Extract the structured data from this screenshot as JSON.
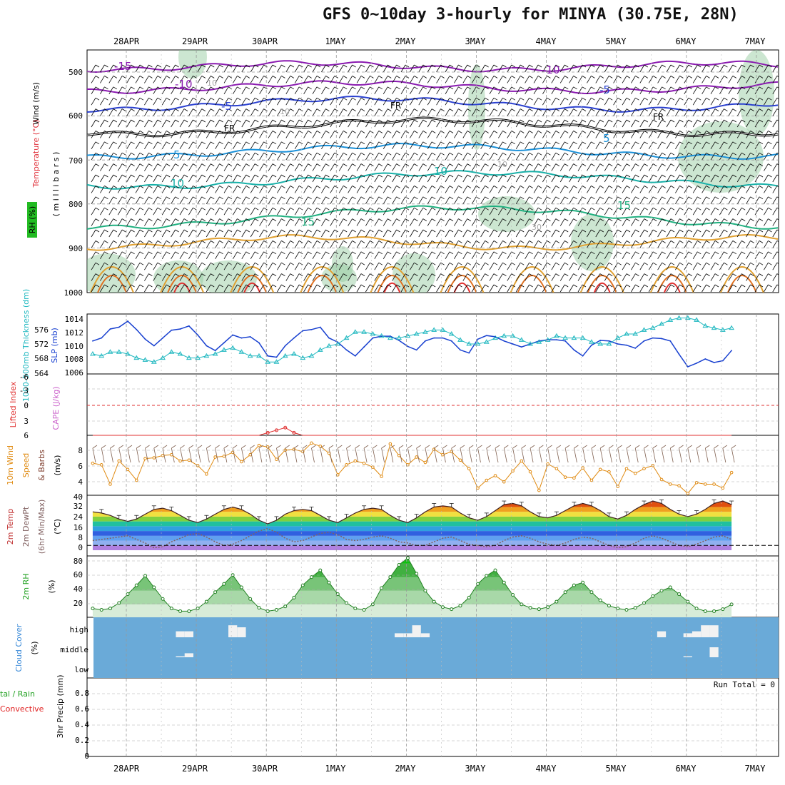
{
  "title": "GFS 0~10day 3-hourly for MINYA (30.75E, 28N)",
  "dates_top": [
    "28APR",
    "29APR",
    "30APR",
    "1MAY",
    "2MAY",
    "3MAY",
    "4MAY",
    "5MAY",
    "6MAY",
    "7MAY"
  ],
  "dates_bottom": [
    "28APR",
    "29APR",
    "30APR",
    "1MAY",
    "2MAY",
    "3MAY",
    "4MAY",
    "5MAY",
    "6MAY",
    "7MAY"
  ],
  "colors": {
    "wind_label": "#000000",
    "temp_label": "#e0303a",
    "rh_label": "#22aa22",
    "thk": "#20b8c0",
    "slp": "#1840d0",
    "cape": "#cc66cc",
    "li": "#e03030",
    "wind10": "#e08a10",
    "dewpt": "#806060",
    "rh2m": "#20a020",
    "cloud_bg": "#6aaad8",
    "cloud_lbl": "#3a8ad8",
    "precip_total": "#20a020",
    "precip_conv": "#e02020"
  },
  "panel1": {
    "label_wind": "Wind (m/s)",
    "label_temp": "Temperature (°C)",
    "label_rh": "RH (%)",
    "label_mb": "( m i l l i b a r s )",
    "pressure_ticks": [
      "500",
      "600",
      "700",
      "800",
      "900",
      "1000"
    ],
    "contour_labels": [
      "-15",
      "-10",
      "-10",
      "-5",
      "-5",
      "FR",
      "FR",
      "FR",
      "5",
      "5",
      "10",
      "10",
      "15",
      "15",
      "10",
      "10",
      "30",
      "10"
    ]
  },
  "panel2": {
    "label_thk": "1000-500mb Thickness (dm)",
    "label_slp": "SLP (mb)",
    "thk_ticks": [
      "576",
      "572",
      "568",
      "564"
    ],
    "slp_ticks": [
      "1014",
      "1012",
      "1010",
      "1008",
      "1006"
    ]
  },
  "panel3": {
    "label_li": "Lifted Index",
    "label_cape": "CAPE (J/kg)",
    "li_ticks": [
      "-6",
      "-3",
      "0",
      "3",
      "6"
    ]
  },
  "panel4": {
    "label_a": "10m Wind",
    "label_b": "Speed",
    "label_c": "& Barbs",
    "label_unit": "(m/s)",
    "ticks": [
      "8",
      "6",
      "4"
    ]
  },
  "panel5": {
    "label_a": "2m Temp",
    "label_b": "2m DewPt",
    "label_c": "(6hr Min/Max)",
    "label_unit": "(°C)",
    "ticks": [
      "40",
      "32",
      "24",
      "16",
      "8",
      "0"
    ]
  },
  "panel6": {
    "label_a": "2m RH",
    "label_unit": "(%)",
    "ticks": [
      "80",
      "60",
      "40",
      "20"
    ]
  },
  "panel7": {
    "label_a": "Cloud Cover",
    "label_unit": "(%)",
    "levels": [
      "high",
      "middle",
      "low"
    ]
  },
  "panel8": {
    "label_total": "tal / Rain",
    "label_conv": "Convective",
    "label_precip": "3hr Precip (mm)",
    "run_total": "Run Total = 0",
    "ticks": [
      "0.8",
      "0.6",
      "0.4",
      "0.2",
      "0"
    ]
  },
  "chart_data": [
    {
      "type": "line",
      "title": "SLP (mb) and 1000-500mb Thickness (dm)",
      "x_unit": "3-hourly steps from 27APR 12Z",
      "series": [
        {
          "name": "SLP (mb)",
          "values": [
            1010.5,
            1011.0,
            1012.5,
            1012.8,
            1013.8,
            1012.4,
            1010.8,
            1009.7,
            1011.0,
            1012.3,
            1012.5,
            1013.0,
            1011.5,
            1009.7,
            1008.9,
            1010.2,
            1011.5,
            1011.0,
            1011.2,
            1010.2,
            1008.0,
            1007.8,
            1009.7,
            1011.0,
            1012.2,
            1012.4,
            1012.8,
            1011.0,
            1010.3,
            1009.0,
            1008.0,
            1009.5,
            1011.0,
            1011.3,
            1011.3,
            1010.6,
            1009.6,
            1009.0,
            1010.5,
            1011.0,
            1011.0,
            1010.5,
            1009.0,
            1008.5,
            1010.8,
            1011.4,
            1011.2,
            1010.5,
            1010.0,
            1009.5,
            1010.0,
            1010.5,
            1010.7,
            1010.7,
            1010.5,
            1009.0,
            1008.0,
            1009.8,
            1010.6,
            1010.5,
            1010.0,
            1009.8,
            1009.3,
            1010.5,
            1011.0,
            1010.9,
            1010.5,
            1008.3,
            1006.2,
            1006.8,
            1007.5,
            1006.9,
            1007.2,
            1008.9
          ]
        },
        {
          "name": "Thickness (dm)",
          "values": [
            568.0,
            567.5,
            568.5,
            568.5,
            568.0,
            567.0,
            566.5,
            566.0,
            567.0,
            568.5,
            568.0,
            567.0,
            567.0,
            567.5,
            568.0,
            569.0,
            569.5,
            568.5,
            567.5,
            567.5,
            566.0,
            566.0,
            567.5,
            568.0,
            567.0,
            567.5,
            569.0,
            570.0,
            570.5,
            572.0,
            573.5,
            573.5,
            573.0,
            572.5,
            572.0,
            572.0,
            572.5,
            573.0,
            573.5,
            574.0,
            574.0,
            573.0,
            571.5,
            570.5,
            570.5,
            571.0,
            572.0,
            572.5,
            572.5,
            571.5,
            570.5,
            571.0,
            571.5,
            572.5,
            572.0,
            572.0,
            572.0,
            571.0,
            570.5,
            570.5,
            572.0,
            573.0,
            573.0,
            574.0,
            574.5,
            575.5,
            576.5,
            577.0,
            577.0,
            576.5,
            575.0,
            574.5,
            574.0,
            574.5
          ]
        }
      ],
      "ylim_slp": [
        1006,
        1014
      ],
      "ylim_thk": [
        564,
        578
      ]
    },
    {
      "type": "line",
      "title": "Lifted Index / CAPE",
      "series": [
        {
          "name": "Lifted Index",
          "values": [
            6,
            6,
            6,
            6,
            6,
            6,
            6,
            6,
            6,
            6,
            6,
            6,
            6,
            6,
            6,
            6,
            6,
            6,
            6,
            6,
            5.5,
            5.0,
            4.5,
            5.5,
            6,
            6,
            6,
            6,
            6,
            6,
            6,
            6,
            6,
            6,
            6,
            6,
            6,
            6,
            6,
            6,
            6,
            6,
            6,
            6,
            6,
            6,
            6,
            6,
            6,
            6,
            6,
            6,
            6,
            6,
            6,
            6,
            6,
            6,
            6,
            6,
            6,
            6,
            6,
            6,
            6,
            6,
            6,
            6,
            6,
            6,
            6,
            6,
            6,
            6
          ]
        }
      ],
      "ylim": [
        -6,
        6
      ]
    },
    {
      "type": "line",
      "title": "10m Wind Speed (m/s)",
      "series": [
        {
          "name": "10m Wind Speed",
          "values": [
            6.5,
            6.3,
            3.8,
            6.8,
            5.7,
            4.3,
            7.1,
            7.2,
            7.5,
            7.6,
            6.8,
            6.9,
            6.2,
            5.1,
            7.3,
            7.4,
            7.9,
            6.7,
            7.6,
            8.8,
            8.6,
            7.0,
            8.2,
            8.3,
            8.0,
            9.1,
            8.7,
            7.8,
            5.0,
            6.3,
            6.8,
            6.5,
            6.0,
            4.8,
            9.0,
            7.5,
            6.3,
            7.3,
            6.6,
            8.3,
            7.6,
            8.0,
            6.9,
            5.8,
            3.3,
            4.3,
            4.9,
            4.1,
            5.5,
            6.8,
            5.4,
            3.0,
            6.4,
            5.8,
            4.7,
            4.6,
            5.9,
            4.3,
            5.7,
            5.4,
            3.5,
            5.8,
            5.2,
            5.8,
            6.2,
            4.4,
            3.8,
            3.6,
            2.6,
            4.0,
            3.8,
            3.8,
            3.3,
            5.3
          ]
        }
      ],
      "ylim": [
        2,
        9
      ]
    },
    {
      "type": "area",
      "title": "2m Temp / 2m DewPt",
      "series": [
        {
          "name": "2m Temp (°C)",
          "values": [
            28,
            27,
            25,
            22,
            20,
            22,
            26,
            30,
            31,
            29,
            25,
            21,
            19,
            22,
            26,
            30,
            32,
            30,
            26,
            21,
            18,
            21,
            26,
            29,
            30,
            29,
            25,
            21,
            19,
            23,
            27,
            30,
            31,
            30,
            25,
            21,
            19,
            23,
            28,
            32,
            33,
            32,
            27,
            23,
            21,
            24,
            29,
            34,
            35,
            33,
            28,
            24,
            23,
            25,
            29,
            33,
            35,
            33,
            29,
            24,
            22,
            25,
            30,
            34,
            37,
            35,
            30,
            26,
            24,
            26,
            30,
            35,
            37,
            34
          ]
        },
        {
          "name": "2m DewPt (°C)",
          "values": [
            4,
            5,
            6,
            7,
            8,
            5,
            2,
            -2,
            -1,
            3,
            6,
            9,
            10,
            7,
            3,
            0,
            1,
            4,
            8,
            12,
            14,
            11,
            6,
            3,
            4,
            7,
            10,
            11,
            9,
            5,
            4,
            5,
            7,
            8,
            6,
            3,
            2,
            0,
            0,
            3,
            6,
            7,
            4,
            1,
            0,
            -1,
            0,
            4,
            7,
            8,
            6,
            3,
            1,
            0,
            2,
            5,
            7,
            6,
            3,
            0,
            -2,
            -1,
            2,
            6,
            8,
            6,
            3,
            0,
            -1,
            1,
            4,
            7,
            8,
            5
          ]
        }
      ],
      "ylim": [
        -4,
        40
      ]
    },
    {
      "type": "area",
      "title": "2m RH (%)",
      "series": [
        {
          "name": "2m RH",
          "values": [
            14,
            12,
            14,
            22,
            35,
            48,
            62,
            45,
            28,
            14,
            10,
            10,
            14,
            24,
            38,
            50,
            63,
            45,
            28,
            15,
            10,
            12,
            17,
            30,
            48,
            60,
            70,
            52,
            35,
            22,
            14,
            12,
            20,
            44,
            60,
            78,
            88,
            65,
            40,
            24,
            16,
            13,
            18,
            30,
            50,
            62,
            70,
            52,
            34,
            20,
            15,
            13,
            16,
            24,
            38,
            48,
            52,
            38,
            26,
            18,
            14,
            12,
            15,
            22,
            32,
            40,
            45,
            35,
            24,
            14,
            10,
            10,
            13,
            20
          ]
        }
      ],
      "ylim": [
        0,
        90
      ]
    },
    {
      "type": "bar",
      "title": "Cloud Cover (%)",
      "series": [
        {
          "name": "high",
          "values": [
            0,
            0,
            0,
            0,
            0,
            0,
            0,
            0,
            0,
            0,
            30,
            30,
            0,
            0,
            0,
            0,
            60,
            50,
            0,
            0,
            0,
            0,
            0,
            0,
            0,
            0,
            0,
            0,
            0,
            0,
            0,
            0,
            0,
            0,
            0,
            20,
            20,
            60,
            20,
            0,
            0,
            0,
            0,
            0,
            0,
            0,
            0,
            0,
            0,
            0,
            0,
            0,
            0,
            0,
            0,
            0,
            0,
            0,
            0,
            0,
            0,
            0,
            0,
            0,
            0,
            30,
            0,
            0,
            20,
            30,
            60,
            60,
            0,
            0
          ]
        },
        {
          "name": "middle",
          "values": [
            0,
            0,
            0,
            0,
            0,
            0,
            0,
            0,
            0,
            0,
            5,
            20,
            0,
            0,
            0,
            0,
            0,
            0,
            0,
            0,
            0,
            0,
            0,
            0,
            0,
            0,
            0,
            0,
            0,
            0,
            0,
            0,
            0,
            0,
            0,
            0,
            0,
            0,
            0,
            0,
            0,
            0,
            0,
            0,
            0,
            0,
            0,
            0,
            0,
            0,
            0,
            0,
            0,
            0,
            0,
            0,
            0,
            0,
            0,
            0,
            0,
            0,
            0,
            0,
            0,
            0,
            0,
            0,
            5,
            0,
            0,
            50,
            0,
            0
          ]
        }
      ]
    },
    {
      "type": "bar",
      "title": "3hr Precip (mm)",
      "series": [
        {
          "name": "3hr Precip",
          "values": [
            0,
            0,
            0,
            0,
            0,
            0,
            0,
            0,
            0,
            0,
            0,
            0,
            0,
            0,
            0,
            0,
            0,
            0,
            0,
            0,
            0,
            0,
            0,
            0,
            0,
            0,
            0,
            0,
            0,
            0,
            0,
            0,
            0,
            0,
            0,
            0,
            0,
            0,
            0,
            0,
            0,
            0,
            0,
            0,
            0,
            0,
            0,
            0,
            0,
            0,
            0,
            0,
            0,
            0,
            0,
            0,
            0,
            0,
            0,
            0,
            0,
            0,
            0,
            0,
            0,
            0,
            0,
            0,
            0,
            0,
            0,
            0,
            0,
            0
          ]
        }
      ],
      "ylim": [
        0,
        0.9
      ]
    }
  ]
}
